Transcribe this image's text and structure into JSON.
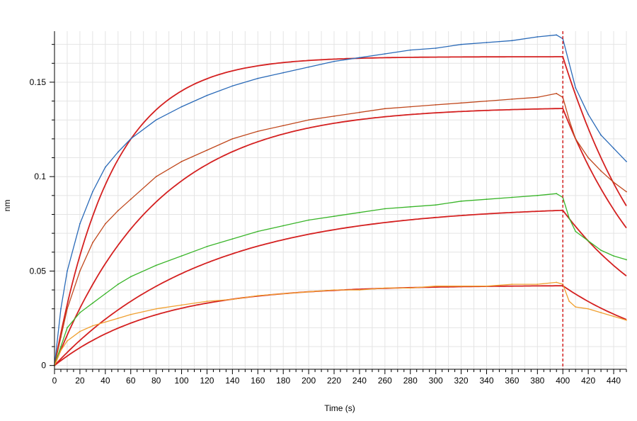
{
  "chart_data": {
    "type": "line",
    "title": "",
    "xlabel": "Time (s)",
    "ylabel": "nm",
    "xlim": [
      0,
      450
    ],
    "ylim": [
      -0.002,
      0.177
    ],
    "x_ticks": [
      0,
      20,
      40,
      60,
      80,
      100,
      120,
      140,
      160,
      180,
      200,
      220,
      240,
      260,
      280,
      300,
      320,
      340,
      360,
      380,
      400,
      420,
      440
    ],
    "x_tick_labels": [
      "0",
      "20",
      "40",
      "60",
      "80",
      "100",
      "120",
      "140",
      "160",
      "180",
      "200",
      "220",
      "240",
      "260",
      "280",
      "300",
      "320",
      "340",
      "360",
      "380",
      "400",
      "420",
      "440"
    ],
    "y_ticks": [
      0,
      0.05,
      0.1,
      0.15
    ],
    "y_tick_labels": [
      "0",
      "0.05",
      "0.1",
      "0.15"
    ],
    "grid": true,
    "legend": "none",
    "vertical_marker": {
      "x": 400,
      "style": "dashed",
      "color": "#d42020"
    },
    "fit_color": "#d42020",
    "series": [
      {
        "color": "#2a6ab8",
        "x": [
          0,
          5,
          10,
          20,
          30,
          40,
          50,
          60,
          80,
          100,
          120,
          140,
          160,
          180,
          200,
          220,
          240,
          260,
          280,
          300,
          320,
          340,
          360,
          380,
          395,
          400,
          405,
          410,
          420,
          430,
          440,
          450
        ],
        "y": [
          0.0,
          0.03,
          0.05,
          0.075,
          0.092,
          0.105,
          0.113,
          0.12,
          0.13,
          0.137,
          0.143,
          0.148,
          0.152,
          0.155,
          0.158,
          0.161,
          0.163,
          0.165,
          0.167,
          0.168,
          0.17,
          0.171,
          0.172,
          0.174,
          0.175,
          0.173,
          0.16,
          0.147,
          0.133,
          0.122,
          0.115,
          0.108
        ]
      },
      {
        "color": "#c0471c",
        "x": [
          0,
          5,
          10,
          20,
          30,
          40,
          50,
          60,
          80,
          100,
          120,
          140,
          160,
          180,
          200,
          220,
          240,
          260,
          280,
          300,
          320,
          340,
          360,
          380,
          395,
          400,
          405,
          410,
          420,
          430,
          440,
          450
        ],
        "y": [
          0.0,
          0.015,
          0.03,
          0.05,
          0.065,
          0.075,
          0.082,
          0.088,
          0.1,
          0.108,
          0.114,
          0.12,
          0.124,
          0.127,
          0.13,
          0.132,
          0.134,
          0.136,
          0.137,
          0.138,
          0.139,
          0.14,
          0.141,
          0.142,
          0.144,
          0.142,
          0.13,
          0.12,
          0.11,
          0.103,
          0.097,
          0.092
        ]
      },
      {
        "color": "#3ab52a",
        "x": [
          0,
          5,
          10,
          20,
          30,
          40,
          50,
          60,
          80,
          100,
          120,
          140,
          160,
          180,
          200,
          220,
          240,
          260,
          280,
          300,
          320,
          340,
          360,
          380,
          395,
          400,
          405,
          410,
          420,
          430,
          440,
          450
        ],
        "y": [
          0.0,
          0.01,
          0.02,
          0.028,
          0.033,
          0.038,
          0.043,
          0.047,
          0.053,
          0.058,
          0.063,
          0.067,
          0.071,
          0.074,
          0.077,
          0.079,
          0.081,
          0.083,
          0.084,
          0.085,
          0.087,
          0.088,
          0.089,
          0.09,
          0.091,
          0.089,
          0.078,
          0.071,
          0.066,
          0.061,
          0.058,
          0.056
        ]
      },
      {
        "color": "#f0a030",
        "x": [
          0,
          5,
          10,
          20,
          30,
          40,
          50,
          60,
          80,
          100,
          120,
          140,
          160,
          180,
          200,
          220,
          240,
          260,
          280,
          300,
          320,
          340,
          360,
          380,
          395,
          400,
          405,
          410,
          420,
          430,
          440,
          450
        ],
        "y": [
          0.0,
          0.008,
          0.013,
          0.018,
          0.021,
          0.023,
          0.025,
          0.027,
          0.03,
          0.032,
          0.034,
          0.035,
          0.037,
          0.038,
          0.039,
          0.04,
          0.04,
          0.041,
          0.041,
          0.042,
          0.042,
          0.042,
          0.043,
          0.043,
          0.044,
          0.043,
          0.034,
          0.031,
          0.03,
          0.028,
          0.026,
          0.024
        ]
      }
    ],
    "fits": [
      {
        "plateau": 0.1635,
        "k_on": 0.022,
        "k_off": 0.0132
      },
      {
        "plateau": 0.137,
        "k_on": 0.0125,
        "k_off": 0.0125
      },
      {
        "plateau": 0.085,
        "k_on": 0.0085,
        "k_off": 0.011
      },
      {
        "plateau": 0.0425,
        "k_on": 0.0125,
        "k_off": 0.011
      }
    ]
  }
}
